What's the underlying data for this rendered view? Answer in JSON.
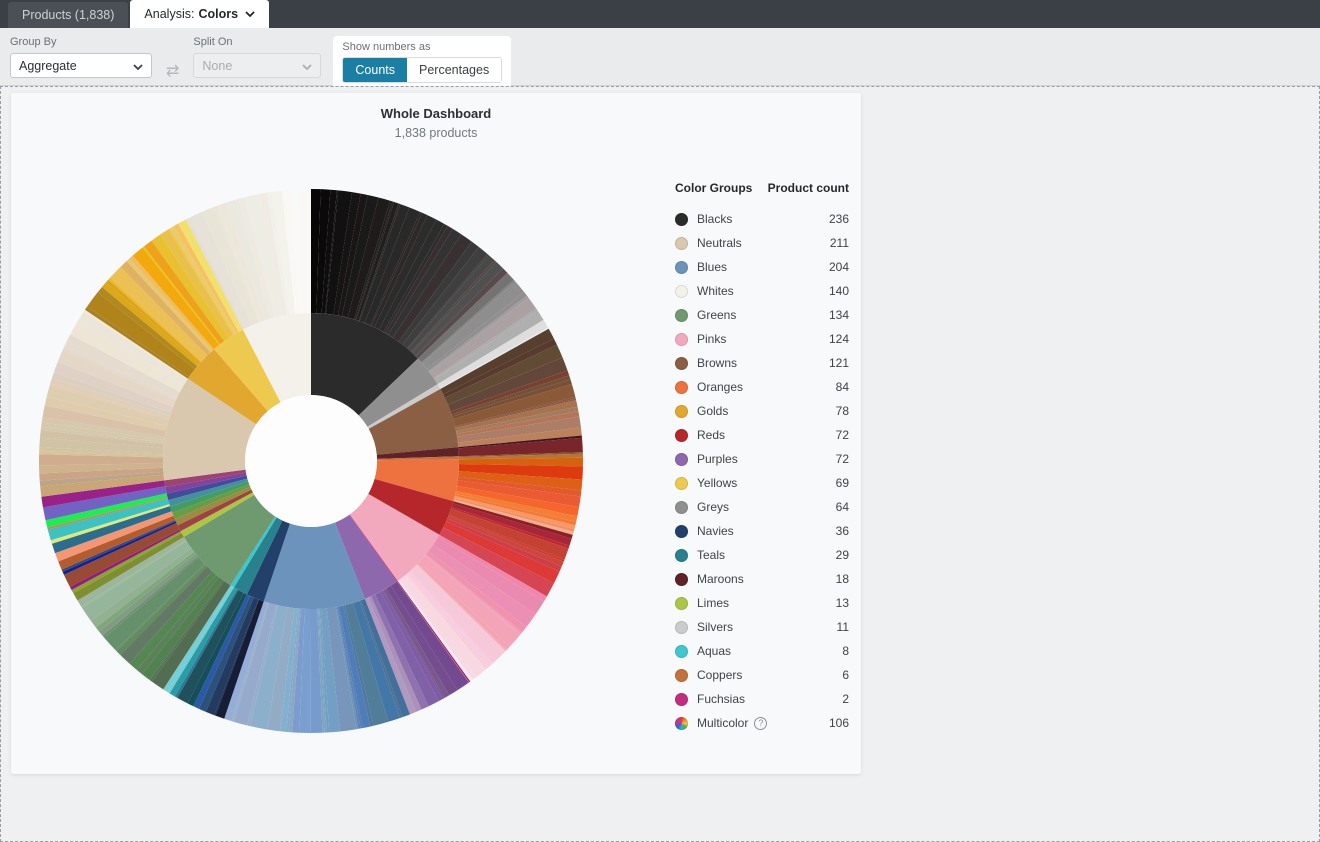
{
  "topbar": {
    "tabs": [
      {
        "label": "Products (1,838)",
        "active": false
      },
      {
        "prefix": "Analysis:",
        "value": "Colors",
        "active": true
      }
    ]
  },
  "toolbar": {
    "group_by_label": "Group By",
    "group_by_value": "Aggregate",
    "split_on_label": "Split On",
    "split_on_value": "None",
    "show_numbers_label": "Show numbers as",
    "counts_label": "Counts",
    "percentages_label": "Percentages",
    "active_toggle": "Counts",
    "accent_color": "#1a7fa3"
  },
  "card": {
    "title": "Whole Dashboard",
    "subtitle": "1,838 products"
  },
  "legend": {
    "header_group": "Color Groups",
    "header_count": "Product count"
  },
  "chart_data": {
    "type": "sunburst",
    "title": "Whole Dashboard",
    "total_label": "1,838 products",
    "total": 1838,
    "rings": [
      "color groups (inner)",
      "individual shades (outer)"
    ],
    "legend_position": "right",
    "groups": [
      {
        "name": "Blacks",
        "count": 236,
        "color": "#2b2b2b"
      },
      {
        "name": "Neutrals",
        "count": 211,
        "color": "#d9c7ae"
      },
      {
        "name": "Blues",
        "count": 204,
        "color": "#6b93bc"
      },
      {
        "name": "Whites",
        "count": 140,
        "color": "#f3f1ea"
      },
      {
        "name": "Greens",
        "count": 134,
        "color": "#6f9a70"
      },
      {
        "name": "Pinks",
        "count": 124,
        "color": "#f2a9bd"
      },
      {
        "name": "Browns",
        "count": 121,
        "color": "#8a5f43"
      },
      {
        "name": "Oranges",
        "count": 84,
        "color": "#ee7140"
      },
      {
        "name": "Golds",
        "count": 78,
        "color": "#e2a72e"
      },
      {
        "name": "Reds",
        "count": 72,
        "color": "#b5272b"
      },
      {
        "name": "Purples",
        "count": 72,
        "color": "#8d68ac"
      },
      {
        "name": "Yellows",
        "count": 69,
        "color": "#edc94f"
      },
      {
        "name": "Greys",
        "count": 64,
        "color": "#8f8f8f"
      },
      {
        "name": "Navies",
        "count": 36,
        "color": "#23406b"
      },
      {
        "name": "Teals",
        "count": 29,
        "color": "#27828e"
      },
      {
        "name": "Maroons",
        "count": 18,
        "color": "#5e2228"
      },
      {
        "name": "Limes",
        "count": 13,
        "color": "#adc545"
      },
      {
        "name": "Silvers",
        "count": 11,
        "color": "#cbcbcb"
      },
      {
        "name": "Aquas",
        "count": 8,
        "color": "#3fc6cf"
      },
      {
        "name": "Coppers",
        "count": 6,
        "color": "#c4713b"
      },
      {
        "name": "Fuchsias",
        "count": 2,
        "color": "#c22e7d"
      },
      {
        "name": "Multicolor",
        "count": 106,
        "color": "#888888",
        "multicolor": true,
        "help": true
      }
    ],
    "chart_order": [
      "Blacks",
      "Greys",
      "Silvers",
      "Browns",
      "Maroons",
      "Coppers",
      "Oranges",
      "Reds",
      "Pinks",
      "Fuchsias",
      "Purples",
      "Blues",
      "Navies",
      "Teals",
      "Aquas",
      "Greens",
      "Limes",
      "Multicolor",
      "Neutrals",
      "Golds",
      "Yellows",
      "Whites"
    ]
  }
}
